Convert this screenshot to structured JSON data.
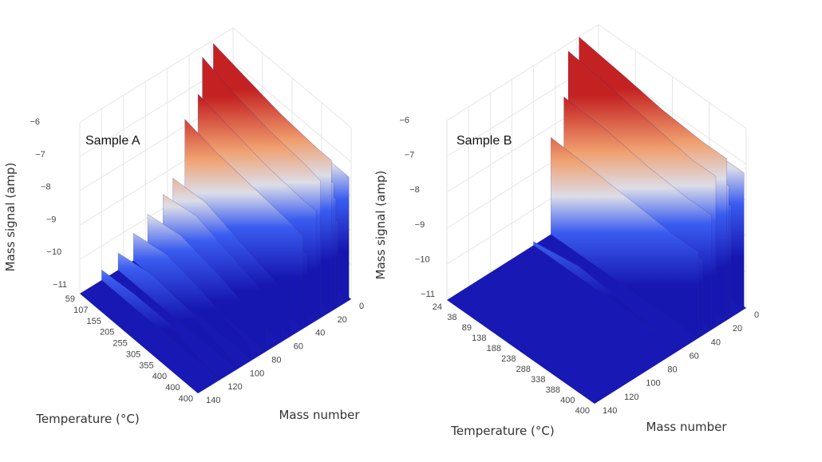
{
  "chart_data": [
    {
      "type": "surface",
      "title": "Sample A",
      "xlabel": "Temperature (°C)",
      "ylabel": "Mass number",
      "zlabel": "Mass signal (amp)",
      "x_ticks": [
        "59",
        "107",
        "155",
        "205",
        "255",
        "305",
        "355",
        "400",
        "400",
        "400"
      ],
      "y_ticks": [
        0,
        20,
        40,
        60,
        80,
        100,
        120,
        140
      ],
      "z_ticks": [
        -6,
        -7,
        -8,
        -9,
        -10,
        -11
      ],
      "zlim": [
        -11,
        -6
      ],
      "ylim": [
        0,
        140
      ],
      "colorscale": [
        "#1616b0",
        "#3a5cf0",
        "#dcdde8",
        "#f0a070",
        "#c42222"
      ],
      "temperature": [
        59,
        155,
        255,
        355,
        400
      ],
      "series": [
        {
          "mass": 2,
          "signal": [
            -7.1,
            -7.2,
            -7.3,
            -7.4,
            -7.4
          ]
        },
        {
          "mass": 12,
          "signal": [
            -8.2,
            -8.3,
            -8.4,
            -8.5,
            -8.5
          ]
        },
        {
          "mass": 14,
          "signal": [
            -7.5,
            -7.6,
            -7.7,
            -7.8,
            -7.8
          ]
        },
        {
          "mass": 16,
          "signal": [
            -7.0,
            -7.1,
            -7.2,
            -7.3,
            -7.3
          ]
        },
        {
          "mass": 18,
          "signal": [
            -6.1,
            -6.3,
            -6.5,
            -6.6,
            -6.6
          ]
        },
        {
          "mass": 28,
          "signal": [
            -6.3,
            -6.6,
            -6.8,
            -6.9,
            -7.0
          ]
        },
        {
          "mass": 32,
          "signal": [
            -7.3,
            -7.5,
            -7.7,
            -7.8,
            -7.8
          ]
        },
        {
          "mass": 40,
          "signal": [
            -8.5,
            -8.6,
            -8.8,
            -8.9,
            -8.9
          ]
        },
        {
          "mass": 44,
          "signal": [
            -7.8,
            -8.0,
            -8.1,
            -8.2,
            -8.3
          ]
        },
        {
          "mass": 55,
          "signal": [
            -9.3,
            -9.2,
            -9.5,
            -9.8,
            -9.9
          ]
        },
        {
          "mass": 64,
          "signal": [
            -9.6,
            -9.4,
            -9.7,
            -10.0,
            -10.1
          ]
        },
        {
          "mass": 78,
          "signal": [
            -9.9,
            -9.7,
            -9.9,
            -10.2,
            -10.3
          ]
        },
        {
          "mass": 91,
          "signal": [
            -10.2,
            -10.0,
            -10.2,
            -10.5,
            -10.6
          ]
        },
        {
          "mass": 105,
          "signal": [
            -10.5,
            -10.3,
            -10.4,
            -10.7,
            -10.8
          ]
        },
        {
          "mass": 120,
          "signal": [
            -10.7,
            -10.6,
            -10.6,
            -10.9,
            -10.9
          ]
        }
      ]
    },
    {
      "type": "surface",
      "title": "Sample B",
      "xlabel": "Temperature (°C)",
      "ylabel": "Mass number",
      "zlabel": "Mass signal (amp)",
      "x_ticks": [
        "24",
        "38",
        "89",
        "138",
        "188",
        "238",
        "288",
        "338",
        "388",
        "400",
        "400"
      ],
      "y_ticks": [
        0,
        20,
        40,
        60,
        80,
        100,
        120,
        140
      ],
      "z_ticks": [
        -6,
        -7,
        -8,
        -9,
        -10,
        -11
      ],
      "zlim": [
        -11,
        -6
      ],
      "ylim": [
        0,
        140
      ],
      "colorscale": [
        "#1616b0",
        "#3a5cf0",
        "#dcdde8",
        "#f0a070",
        "#c42222"
      ],
      "temperature": [
        24,
        138,
        238,
        338,
        400
      ],
      "series": [
        {
          "mass": 2,
          "signal": [
            -6.9,
            -7.0,
            -7.1,
            -7.2,
            -7.2
          ]
        },
        {
          "mass": 14,
          "signal": [
            -7.6,
            -7.7,
            -7.8,
            -7.8,
            -7.9
          ]
        },
        {
          "mass": 16,
          "signal": [
            -7.0,
            -7.1,
            -7.2,
            -7.3,
            -7.3
          ]
        },
        {
          "mass": 18,
          "signal": [
            -6.0,
            -6.2,
            -6.4,
            -6.5,
            -6.5
          ]
        },
        {
          "mass": 28,
          "signal": [
            -6.2,
            -6.4,
            -6.6,
            -6.8,
            -6.8
          ]
        },
        {
          "mass": 32,
          "signal": [
            -7.4,
            -7.5,
            -7.7,
            -7.8,
            -7.8
          ]
        },
        {
          "mass": 40,
          "signal": [
            -8.6,
            -8.7,
            -8.8,
            -8.9,
            -8.9
          ]
        },
        {
          "mass": 44,
          "signal": [
            -8.3,
            -8.4,
            -8.5,
            -8.6,
            -8.6
          ]
        },
        {
          "mass": 60,
          "signal": [
            -10.9,
            -10.7,
            -10.8,
            -11.0,
            -11.0
          ]
        }
      ]
    }
  ]
}
